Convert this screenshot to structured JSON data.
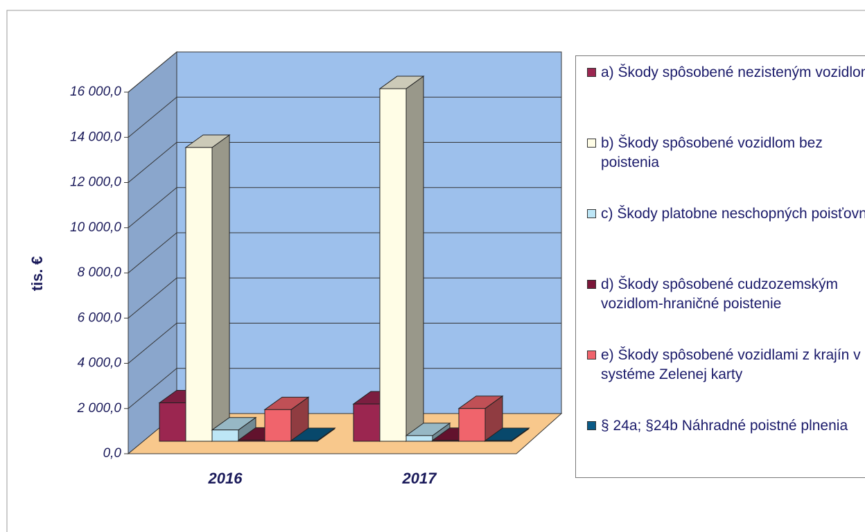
{
  "chart_data": {
    "type": "bar3d",
    "categories": [
      "2016",
      "2017"
    ],
    "y_label": "tis. €",
    "ylim": [
      0,
      16000
    ],
    "yticks": [
      {
        "value": 0,
        "label": "0,0"
      },
      {
        "value": 2000,
        "label": "2 000,0"
      },
      {
        "value": 4000,
        "label": "4 000,0"
      },
      {
        "value": 6000,
        "label": "6 000,0"
      },
      {
        "value": 8000,
        "label": "8 000,0"
      },
      {
        "value": 10000,
        "label": "10 000,0"
      },
      {
        "value": 12000,
        "label": "12 000,0"
      },
      {
        "value": 14000,
        "label": "14 000,0"
      },
      {
        "value": 16000,
        "label": "16 000,0"
      }
    ],
    "grid": true,
    "legend": "right",
    "series": [
      {
        "name": "a) Škody spôsobené nezisteným vozidlom",
        "color": "#9b2650",
        "values": [
          1700,
          1650
        ]
      },
      {
        "name": "b) Škody spôsobené vozidlom bez poistenia",
        "color": "#fffde6",
        "values": [
          13000,
          15600
        ]
      },
      {
        "name": "c) Škody platobne neschopných poisťovní",
        "color": "#bde6f6",
        "values": [
          500,
          250
        ]
      },
      {
        "name": "d) Škody spôsobené cudzozemským vozidlom-hraničné poistenie",
        "color": "#7a1638",
        "values": [
          50,
          40
        ]
      },
      {
        "name": "e) Škody spôsobené vozidlami z krajín v systéme Zelenej karty",
        "color": "#f0646c",
        "values": [
          1400,
          1450
        ]
      },
      {
        "name": "§ 24a; §24b Náhradné poistné plnenia",
        "color": "#0a5a86",
        "values": [
          30,
          30
        ]
      }
    ]
  }
}
